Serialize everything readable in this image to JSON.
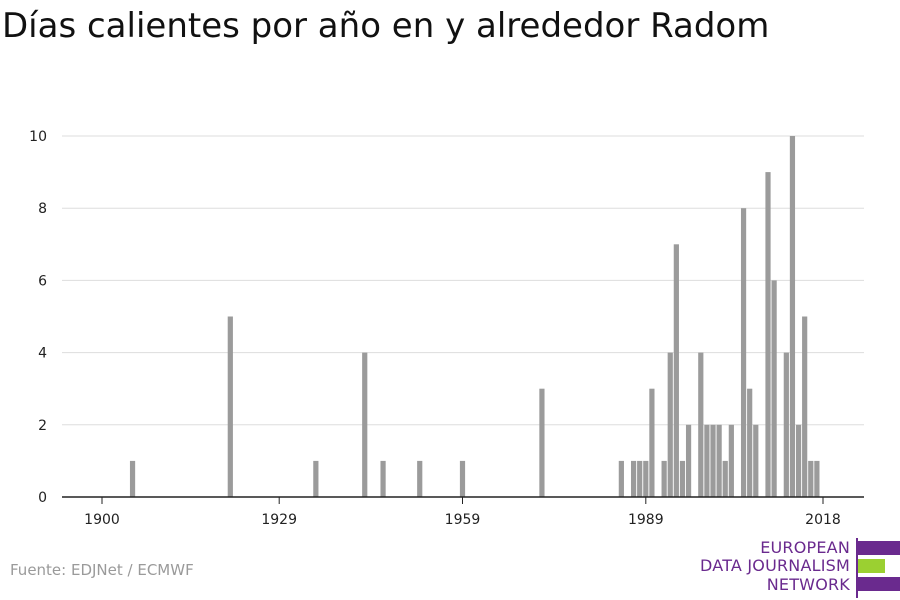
{
  "title": "Días calientes por año en y alrededor Radom",
  "source": "Fuente: EDJNet / ECMWF",
  "logo": {
    "line1": "EUROPEAN",
    "line2": "DATA JOURNALISM",
    "line3": "NETWORK"
  },
  "colors": {
    "bar": "#9b9b9b",
    "grid": "#dddddd",
    "axis": "#222222",
    "logo_purple": "#6a2a8e",
    "logo_green": "#9bd031"
  },
  "chart_data": {
    "type": "bar",
    "title": "Días calientes por año en y alrededor Radom",
    "xlabel": "",
    "ylabel": "",
    "xlim": [
      1900,
      2018
    ],
    "ylim": [
      0,
      10
    ],
    "xticks": [
      1900,
      1929,
      1959,
      1989,
      2018
    ],
    "yticks": [
      0,
      2,
      4,
      6,
      8,
      10
    ],
    "grid": true,
    "x": [
      1905,
      1921,
      1935,
      1943,
      1946,
      1952,
      1959,
      1972,
      1985,
      1987,
      1988,
      1989,
      1990,
      1992,
      1993,
      1994,
      1995,
      1996,
      1998,
      1999,
      2000,
      2001,
      2002,
      2003,
      2005,
      2006,
      2007,
      2009,
      2010,
      2012,
      2013,
      2014,
      2015,
      2016,
      2017
    ],
    "values": [
      1,
      5,
      1,
      4,
      1,
      1,
      1,
      3,
      1,
      1,
      1,
      1,
      3,
      1,
      4,
      7,
      1,
      2,
      4,
      2,
      2,
      2,
      1,
      2,
      8,
      3,
      2,
      9,
      6,
      4,
      10,
      2,
      5,
      1,
      1
    ]
  }
}
